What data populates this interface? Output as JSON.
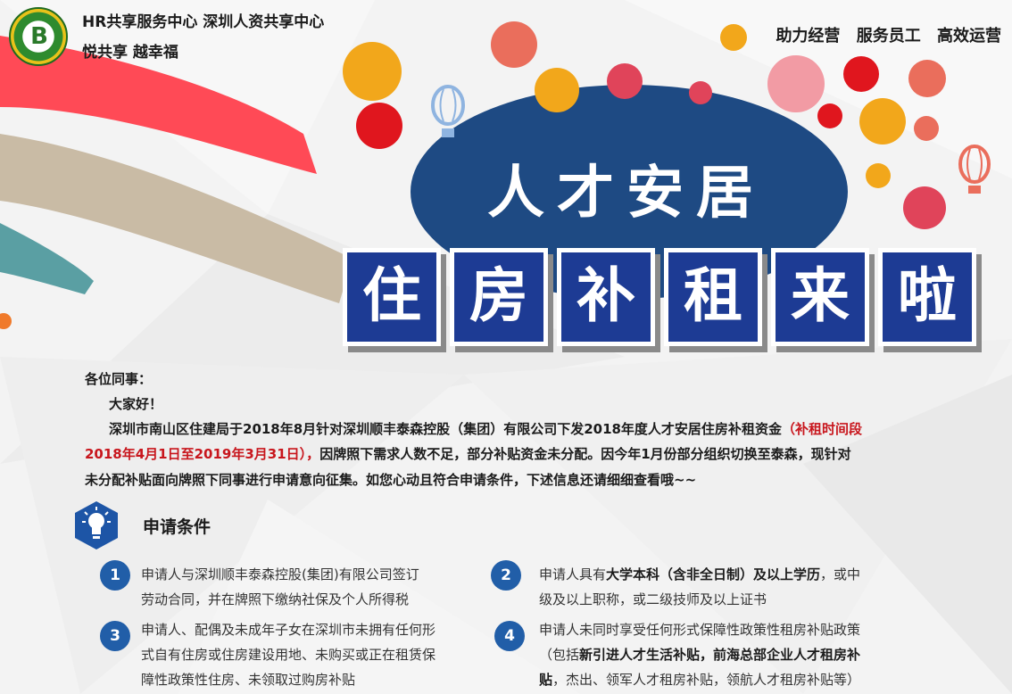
{
  "header": {
    "org_title": "HR共享服务中心 深圳人资共享中心",
    "slogan": "悦共享  越幸福",
    "mottos": [
      "助力经营",
      "服务员工",
      "高效运营"
    ],
    "logo_letter": "B"
  },
  "poster": {
    "title": "人才安居",
    "tiles": [
      "住",
      "房",
      "补",
      "租",
      "来",
      "啦"
    ]
  },
  "letter": {
    "salutation": "各位同事：",
    "greeting": "大家好！",
    "p1_a": "深圳市南山区住建局于2018年8月针对深圳顺丰泰森控股（集团）有限公司下发2018年度人才安居住房补租资金",
    "p1_red_a": "（补租时间段",
    "p1_red_b": "2018年4月1日至2019年3月31日），",
    "p1_b": "因牌照下需求人数不足，部分补贴资金未分配。因今年1月份部分组织切换至泰森，现针对",
    "p1_c": "未分配补贴面向牌照下同事进行申请意向征集。如您心动且符合申请条件，下述信息还请细细查看哦~~"
  },
  "section": {
    "title": "申请条件"
  },
  "conditions": [
    {
      "num": "1",
      "line1": "申请人与深圳顺丰泰森控股(集团)有限公司签订",
      "line2": "劳动合同，并在牌照下缴纳社保及个人所得税"
    },
    {
      "num": "2",
      "line1_pre": "申请人具有",
      "line1_bold": "大学本科（含非全日制）及以上学历",
      "line1_post": "，或中",
      "line2": "级及以上职称，或二级技师及以上证书"
    },
    {
      "num": "3",
      "line1": "申请人、配偶及未成年子女在深圳市未拥有任何形",
      "line2": "式自有住房或住房建设用地、未购买或正在租赁保",
      "line3": "障性政策性住房、未领取过购房补贴"
    },
    {
      "num": "4",
      "line1": "申请人未同时享受任何形式保障性政策性租房补贴政策",
      "line2_pre": "（包括",
      "line2_bold": "新引进人才生活补贴，前海总部企业人才租房补",
      "line3_bold": "贴",
      "line3_post": "，杰出、领军人才租房补贴，领航人才租房补贴等）"
    }
  ]
}
